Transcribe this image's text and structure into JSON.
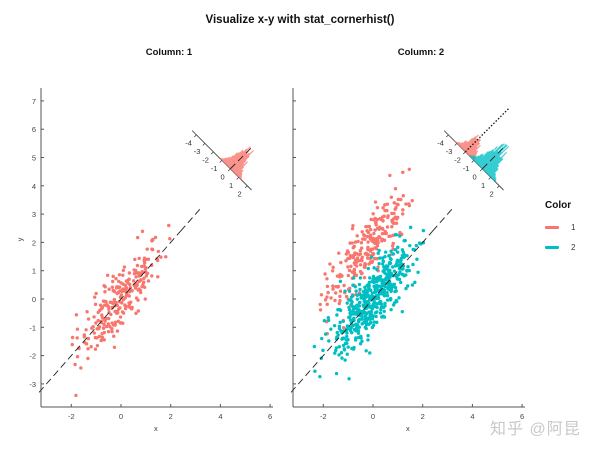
{
  "title": "Visualize x-y with stat_cornerhist()",
  "facets": [
    "Column: 1",
    "Column: 2"
  ],
  "legend": {
    "title": "Color",
    "items": [
      {
        "label": "1",
        "color": "#F8766D"
      },
      {
        "label": "2",
        "color": "#00BFC4"
      }
    ]
  },
  "watermark": "知乎 @阿昆",
  "chart_data": {
    "type": "scatter",
    "title": "Visualize x-y with stat_cornerhist()",
    "xlabel": "x",
    "ylabel": "y",
    "xlim": [
      -3.2,
      6.1
    ],
    "ylim": [
      -3.7,
      7.6
    ],
    "x_ticks": [
      -2,
      0,
      2,
      4,
      6
    ],
    "y_ticks": [
      -3,
      -2,
      -1,
      0,
      1,
      2,
      3,
      4,
      5,
      6,
      7
    ],
    "grid": false,
    "legend_position": "right",
    "reference_line": "y = x (dashed)",
    "corner_histogram": {
      "description": "Histogram of (y - x) residuals drawn rotated at upper right of each panel",
      "ticks": [
        -4,
        -3,
        -2,
        -1,
        0,
        1,
        2
      ]
    },
    "panels": [
      {
        "facet": "Column: 1",
        "series": [
          {
            "name": "1",
            "color": "#F8766D",
            "n_points_approx": 250,
            "x_range": [
              -2.5,
              2.4
            ],
            "y_range": [
              -2.4,
              3.3
            ],
            "relationship": "y ≈ x + noise (sd≈0.5)",
            "hist_center": 0,
            "hist_spread": [
              -1.2,
              1.2
            ]
          }
        ]
      },
      {
        "facet": "Column: 2",
        "series": [
          {
            "name": "1",
            "color": "#F8766D",
            "n_points_approx": 250,
            "x_range": [
              -2.3,
              1.7
            ],
            "y_range": [
              -2.0,
              4.2
            ],
            "relationship": "y ≈ x + 2 + noise",
            "hist_center": -2,
            "hist_spread": [
              -3.3,
              -1.0
            ]
          },
          {
            "name": "2",
            "color": "#00BFC4",
            "n_points_approx": 500,
            "x_range": [
              -2.8,
              2.2
            ],
            "y_range": [
              -3.3,
              3.2
            ],
            "relationship": "y ≈ x + noise",
            "hist_center": 0,
            "hist_spread": [
              -1.5,
              1.5
            ]
          }
        ],
        "extra_line": "dotted line toward upper right marking residual offset of group 1"
      }
    ]
  }
}
